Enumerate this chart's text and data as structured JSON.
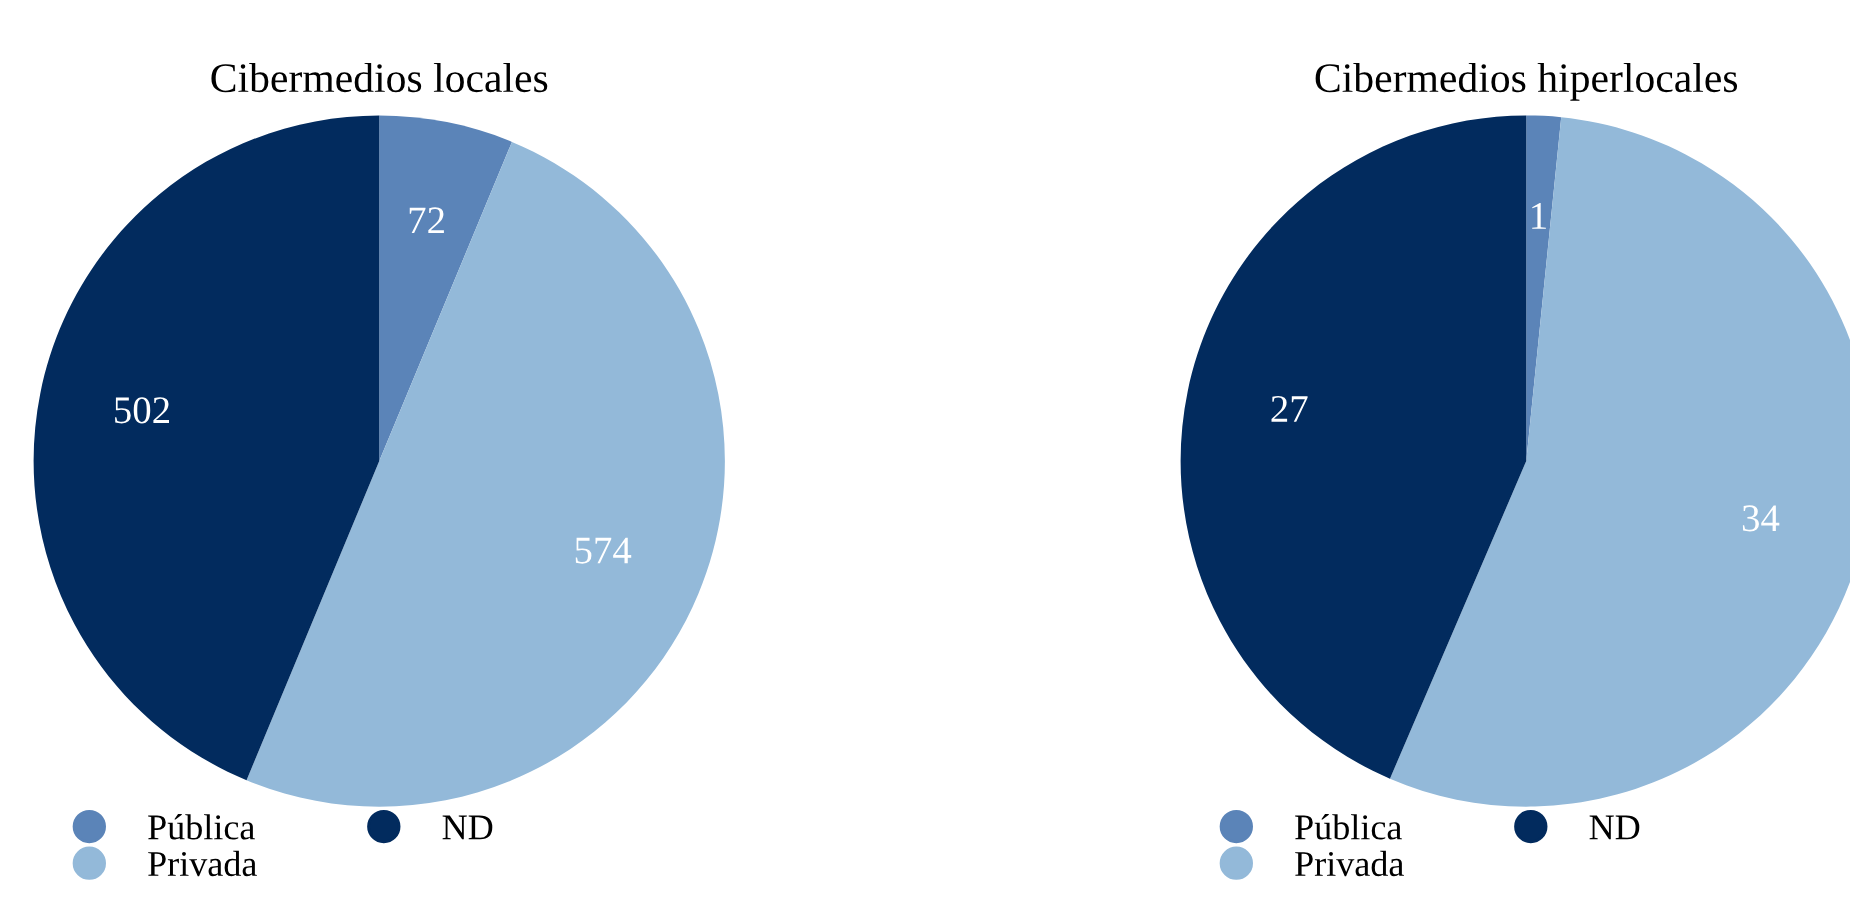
{
  "chart_data": [
    {
      "type": "pie",
      "title": "Cibermedios locales",
      "categories": [
        "Pública",
        "Privada",
        "ND"
      ],
      "values": [
        72,
        574,
        502
      ],
      "colors": [
        "#5b84b8",
        "#93b9d9",
        "#022b5e"
      ],
      "data_labels": true,
      "legend": "bottom"
    },
    {
      "type": "pie",
      "title": "Cibermedios hiperlocales",
      "categories": [
        "Pública",
        "Privada",
        "ND"
      ],
      "values": [
        1,
        34,
        27
      ],
      "colors": [
        "#5b84b8",
        "#93b9d9",
        "#022b5e"
      ],
      "data_labels": true,
      "legend": "bottom"
    }
  ]
}
